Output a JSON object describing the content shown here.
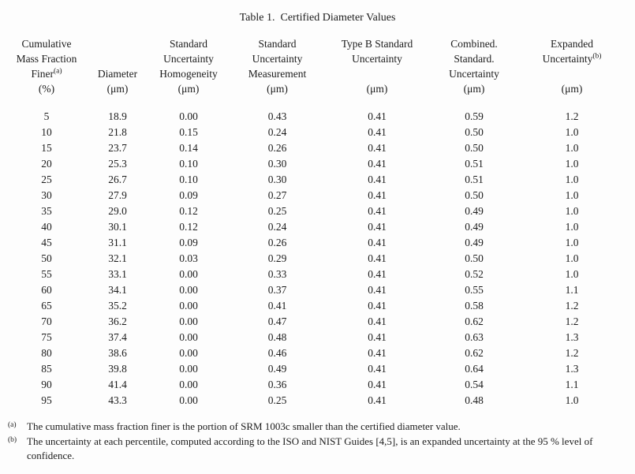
{
  "page": {
    "background_color": "#fdfdfd",
    "text_color": "#1c1c1c"
  },
  "table": {
    "title": "Table 1.  Certified Diameter Values",
    "header": {
      "columns": [
        {
          "name": "cumulative-mass-fraction-finer",
          "lines": [
            "Cumulative",
            "Mass Fraction",
            "Finer^(a)",
            "(%)"
          ]
        },
        {
          "name": "diameter",
          "lines": [
            "",
            "",
            "Diameter",
            "(μm)"
          ]
        },
        {
          "name": "standard-uncertainty-homogeneity",
          "lines": [
            "Standard",
            "Uncertainty",
            "Homogeneity",
            "(μm)"
          ]
        },
        {
          "name": "standard-uncertainty-measurement",
          "lines": [
            "Standard",
            "Uncertainty",
            "Measurement",
            "(μm)"
          ]
        },
        {
          "name": "type-b-standard-uncertainty",
          "lines": [
            "Type B Standard",
            "Uncertainty",
            "",
            "(μm)"
          ]
        },
        {
          "name": "combined-standard-uncertainty",
          "lines": [
            "Combined.",
            "Standard.",
            "Uncertainty",
            "(μm)"
          ]
        },
        {
          "name": "expanded-uncertainty",
          "lines": [
            "Expanded",
            "Uncertainty^(b)",
            "",
            "(μm)"
          ]
        }
      ]
    },
    "rows": [
      [
        "5",
        "18.9",
        "0.00",
        "0.43",
        "0.41",
        "0.59",
        "1.2"
      ],
      [
        "10",
        "21.8",
        "0.15",
        "0.24",
        "0.41",
        "0.50",
        "1.0"
      ],
      [
        "15",
        "23.7",
        "0.14",
        "0.26",
        "0.41",
        "0.50",
        "1.0"
      ],
      [
        "20",
        "25.3",
        "0.10",
        "0.30",
        "0.41",
        "0.51",
        "1.0"
      ],
      [
        "25",
        "26.7",
        "0.10",
        "0.30",
        "0.41",
        "0.51",
        "1.0"
      ],
      [
        "30",
        "27.9",
        "0.09",
        "0.27",
        "0.41",
        "0.50",
        "1.0"
      ],
      [
        "35",
        "29.0",
        "0.12",
        "0.25",
        "0.41",
        "0.49",
        "1.0"
      ],
      [
        "40",
        "30.1",
        "0.12",
        "0.24",
        "0.41",
        "0.49",
        "1.0"
      ],
      [
        "45",
        "31.1",
        "0.09",
        "0.26",
        "0.41",
        "0.49",
        "1.0"
      ],
      [
        "50",
        "32.1",
        "0.03",
        "0.29",
        "0.41",
        "0.50",
        "1.0"
      ],
      [
        "55",
        "33.1",
        "0.00",
        "0.33",
        "0.41",
        "0.52",
        "1.0"
      ],
      [
        "60",
        "34.1",
        "0.00",
        "0.37",
        "0.41",
        "0.55",
        "1.1"
      ],
      [
        "65",
        "35.2",
        "0.00",
        "0.41",
        "0.41",
        "0.58",
        "1.2"
      ],
      [
        "70",
        "36.2",
        "0.00",
        "0.47",
        "0.41",
        "0.62",
        "1.2"
      ],
      [
        "75",
        "37.4",
        "0.00",
        "0.48",
        "0.41",
        "0.63",
        "1.3"
      ],
      [
        "80",
        "38.6",
        "0.00",
        "0.46",
        "0.41",
        "0.62",
        "1.2"
      ],
      [
        "85",
        "39.8",
        "0.00",
        "0.49",
        "0.41",
        "0.64",
        "1.3"
      ],
      [
        "90",
        "41.4",
        "0.00",
        "0.36",
        "0.41",
        "0.54",
        "1.1"
      ],
      [
        "95",
        "43.3",
        "0.00",
        "0.25",
        "0.41",
        "0.48",
        "1.0"
      ]
    ]
  },
  "footnotes": [
    {
      "marker": "(a)",
      "text": "The cumulative mass fraction finer is the portion of SRM 1003c smaller than the certified diameter value."
    },
    {
      "marker": "(b)",
      "text": "The uncertainty at each percentile, computed according to the ISO and NIST Guides [4,5], is an expanded uncertainty at the 95 % level of confidence."
    }
  ]
}
